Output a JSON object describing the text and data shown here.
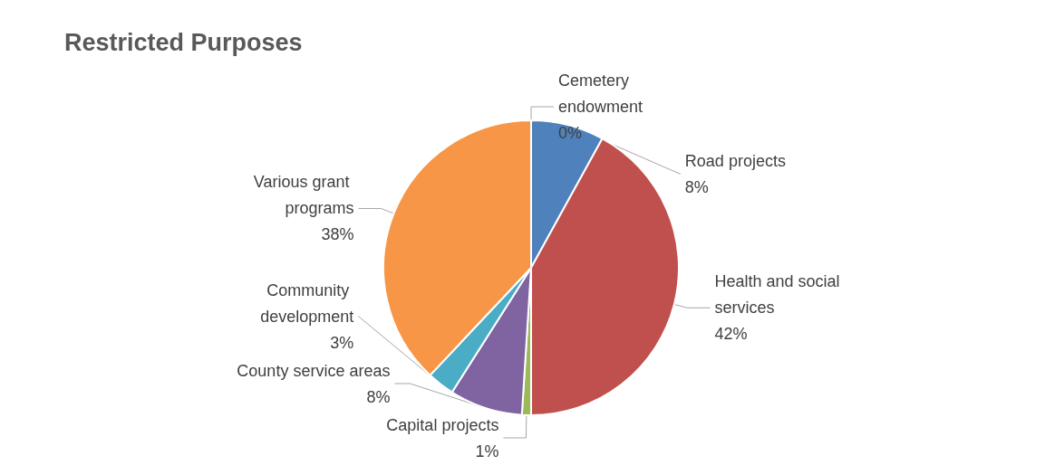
{
  "chart_data": {
    "type": "pie",
    "title": "Restricted Purposes",
    "categories": [
      "Road projects",
      "Health and social services",
      "Capital projects",
      "County service areas",
      "Community development",
      "Various grant programs",
      "Cemetery endowment"
    ],
    "values": [
      8,
      42,
      1,
      8,
      3,
      38,
      0
    ],
    "colors": [
      "#4f81bd",
      "#c0504d",
      "#9bbb59",
      "#8064a2",
      "#4bacc6",
      "#f79646",
      "#2c4d75"
    ],
    "value_labels": [
      "8%",
      "42%",
      "1%",
      "8%",
      "3%",
      "38%",
      "0%"
    ],
    "legend": false
  }
}
